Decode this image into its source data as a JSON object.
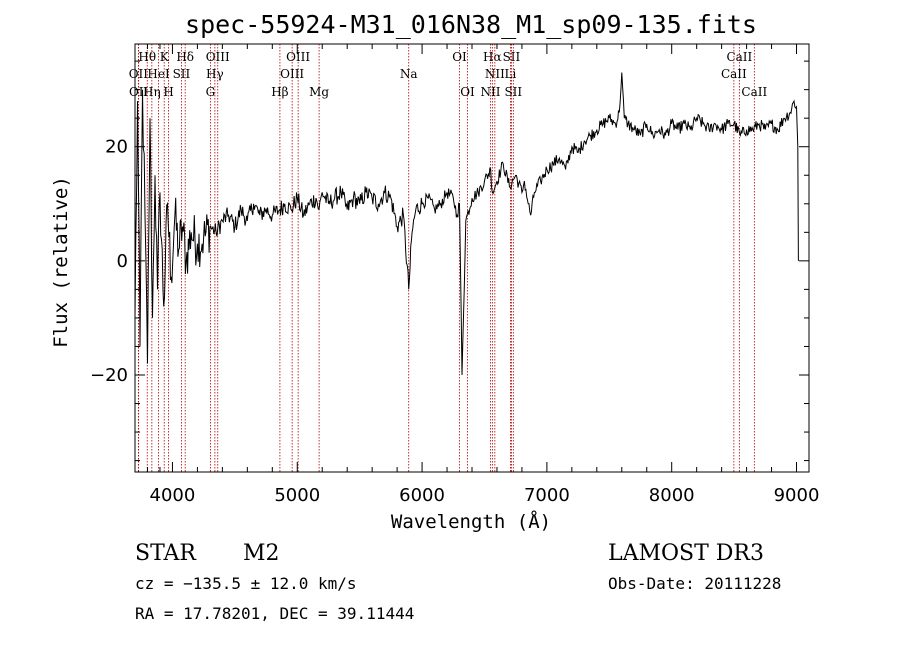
{
  "chart_data": {
    "type": "line",
    "title": "spec-55924-M31_016N38_M1_sp09-135.fits",
    "xlabel": "Wavelength (Å)",
    "ylabel": "Flux (relative)",
    "xlim": [
      3700,
      9100
    ],
    "ylim": [
      -37,
      38
    ],
    "x_ticks": [
      4000,
      5000,
      6000,
      7000,
      8000,
      9000
    ],
    "x_tick_labels": [
      "4000",
      "5000",
      "6000",
      "7000",
      "8000",
      "9000"
    ],
    "y_ticks": [
      -20,
      0,
      20
    ],
    "y_tick_labels": [
      "−20",
      "0",
      "20"
    ],
    "series": [
      {
        "name": "spectrum",
        "color": "#000000",
        "x": [
          3700,
          3720,
          3740,
          3760,
          3780,
          3800,
          3820,
          3840,
          3860,
          3880,
          3900,
          3930,
          3960,
          3990,
          4020,
          4050,
          4080,
          4110,
          4150,
          4200,
          4250,
          4300,
          4350,
          4400,
          4450,
          4500,
          4550,
          4600,
          4650,
          4700,
          4750,
          4800,
          4861,
          4900,
          4950,
          5000,
          5050,
          5100,
          5150,
          5175,
          5200,
          5250,
          5300,
          5350,
          5400,
          5450,
          5500,
          5550,
          5600,
          5650,
          5700,
          5750,
          5800,
          5850,
          5893,
          5920,
          5950,
          6000,
          6050,
          6100,
          6150,
          6200,
          6250,
          6280,
          6300,
          6320,
          6350,
          6400,
          6450,
          6500,
          6550,
          6563,
          6600,
          6650,
          6700,
          6750,
          6800,
          6820,
          6850,
          6870,
          6900,
          6950,
          7000,
          7050,
          7100,
          7150,
          7200,
          7250,
          7300,
          7350,
          7400,
          7450,
          7500,
          7550,
          7580,
          7600,
          7620,
          7650,
          7700,
          7750,
          7800,
          7850,
          7900,
          7950,
          8000,
          8050,
          8100,
          8150,
          8200,
          8250,
          8300,
          8350,
          8400,
          8450,
          8500,
          8550,
          8600,
          8650,
          8700,
          8750,
          8800,
          8850,
          8900,
          8950,
          8980,
          9000,
          9010,
          9015
        ],
        "y": [
          -10,
          28,
          -15,
          30,
          8,
          -18,
          25,
          -10,
          15,
          -5,
          12,
          -8,
          10,
          -3,
          8,
          2,
          6,
          0,
          5,
          3,
          4,
          6,
          5,
          7,
          8,
          6,
          9,
          7,
          10,
          8,
          9,
          8,
          9,
          10,
          9,
          11,
          8,
          10,
          11,
          9,
          12,
          10,
          11,
          12,
          9,
          11,
          10,
          12,
          11,
          10,
          12,
          11,
          6,
          8,
          -5,
          5,
          9,
          10,
          11,
          9,
          10,
          12,
          11,
          8,
          10,
          -20,
          7,
          11,
          12,
          14,
          16,
          12,
          14,
          17,
          13,
          15,
          12,
          14,
          10,
          8,
          12,
          14,
          16,
          17,
          18,
          16,
          20,
          19,
          21,
          22,
          23,
          24,
          25,
          24,
          26,
          33,
          25,
          24,
          23,
          22,
          24,
          22,
          23,
          22,
          24,
          23,
          24,
          23,
          25,
          24,
          23,
          24,
          23,
          24,
          24,
          22,
          23,
          23,
          24,
          23,
          24,
          23,
          25,
          26,
          28,
          27,
          20,
          0
        ]
      }
    ],
    "spectral_lines": [
      {
        "label": "Hθ",
        "wavelength": 3798,
        "row": 1
      },
      {
        "label": "K",
        "wavelength": 3934,
        "row": 1
      },
      {
        "label": "Hδ",
        "wavelength": 4102,
        "row": 1
      },
      {
        "label": "OIII",
        "wavelength": 4363,
        "row": 1
      },
      {
        "label": "OIII",
        "wavelength": 5007,
        "row": 1
      },
      {
        "label": "OI",
        "wavelength": 6300,
        "row": 1
      },
      {
        "label": "Hα",
        "wavelength": 6563,
        "row": 1
      },
      {
        "label": "SII",
        "wavelength": 6716,
        "row": 1
      },
      {
        "label": "CaII",
        "wavelength": 8542,
        "row": 1
      },
      {
        "label": "OII",
        "wavelength": 3727,
        "row": 2
      },
      {
        "label": "HeI",
        "wavelength": 3889,
        "row": 2
      },
      {
        "label": "SII",
        "wavelength": 4072,
        "row": 2
      },
      {
        "label": "Hγ",
        "wavelength": 4340,
        "row": 2
      },
      {
        "label": "OIII",
        "wavelength": 4959,
        "row": 2
      },
      {
        "label": "Na",
        "wavelength": 5893,
        "row": 2
      },
      {
        "label": "NII",
        "wavelength": 6583,
        "row": 2
      },
      {
        "label": "Li",
        "wavelength": 6708,
        "row": 2
      },
      {
        "label": "CaII",
        "wavelength": 8498,
        "row": 2
      },
      {
        "label": "OII",
        "wavelength": 3729,
        "row": 3
      },
      {
        "label": "Hη",
        "wavelength": 3835,
        "row": 3
      },
      {
        "label": "H",
        "wavelength": 3969,
        "row": 3
      },
      {
        "label": "G",
        "wavelength": 4304,
        "row": 3
      },
      {
        "label": "Hβ",
        "wavelength": 4861,
        "row": 3
      },
      {
        "label": "Mg",
        "wavelength": 5175,
        "row": 3
      },
      {
        "label": "OI",
        "wavelength": 6364,
        "row": 3
      },
      {
        "label": "NII",
        "wavelength": 6548,
        "row": 3
      },
      {
        "label": "SII",
        "wavelength": 6731,
        "row": 3
      },
      {
        "label": "CaII",
        "wavelength": 8662,
        "row": 3
      }
    ]
  },
  "info": {
    "object_class": "STAR",
    "subclass": "M2",
    "survey": "LAMOST DR3",
    "velocity": "cz = −135.5 ± 12.0 km/s",
    "obs_date": "Obs-Date: 20111228",
    "coords": "RA =  17.78201, DEC =  39.11444"
  }
}
